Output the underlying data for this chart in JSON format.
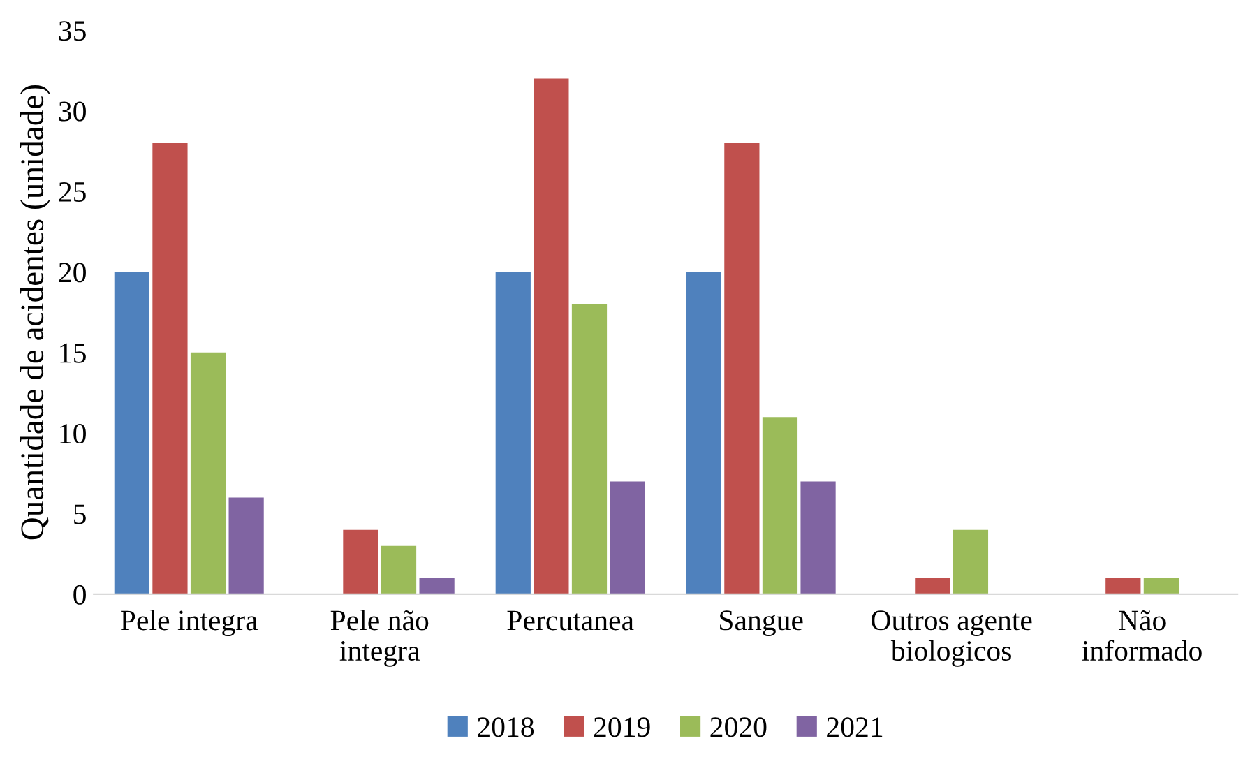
{
  "chart_data": {
    "type": "bar",
    "ylabel": "Quantidade de acidentes (unidade)",
    "categories": [
      "Pele integra",
      "Pele não\nintegra",
      "Percutanea",
      "Sangue",
      "Outros agente\nbiologicos",
      "Não\ninformado"
    ],
    "series": [
      {
        "name": "2018",
        "color": "#4f81bd",
        "values": [
          20,
          0,
          20,
          20,
          0,
          0
        ]
      },
      {
        "name": "2019",
        "color": "#c0504d",
        "values": [
          28,
          4,
          32,
          28,
          1,
          1
        ]
      },
      {
        "name": "2020",
        "color": "#9bbb59",
        "values": [
          15,
          3,
          18,
          11,
          4,
          1
        ]
      },
      {
        "name": "2021",
        "color": "#8064a2",
        "values": [
          6,
          1,
          7,
          7,
          0,
          0
        ]
      }
    ],
    "ylim": [
      0,
      35
    ],
    "yticks": [
      0,
      5,
      10,
      15,
      20,
      25,
      30,
      35
    ],
    "grid": false,
    "legend": "bottom"
  }
}
